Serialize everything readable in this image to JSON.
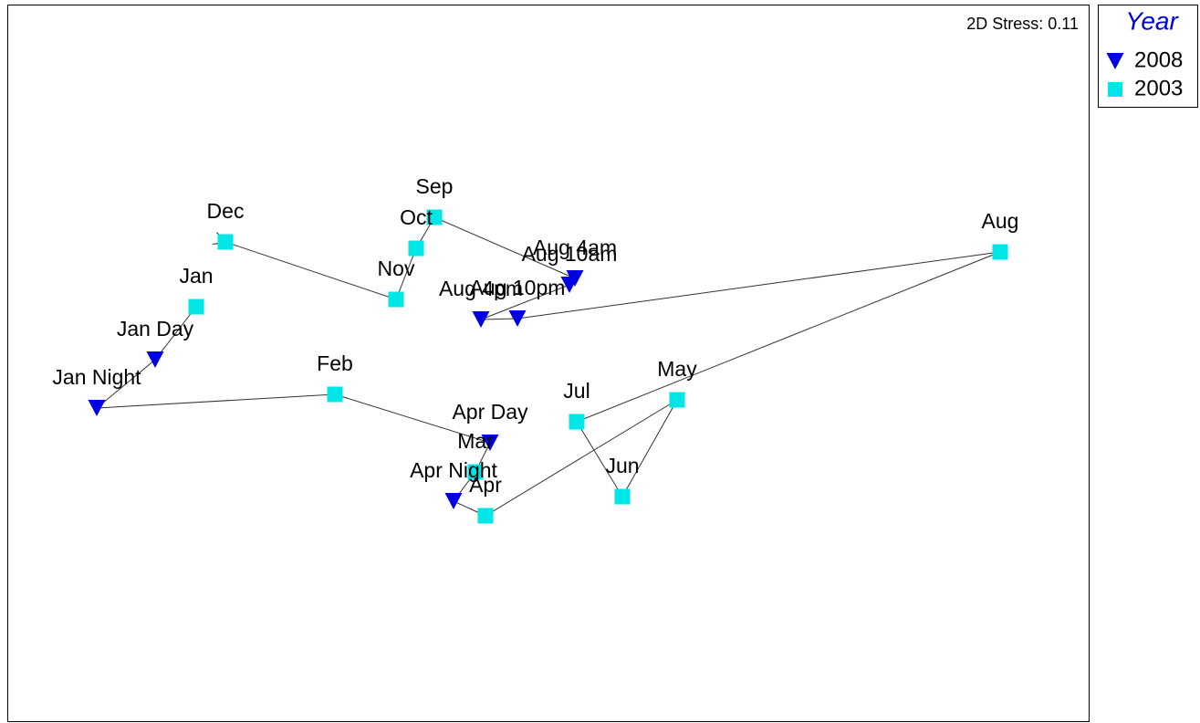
{
  "chart_data": {
    "type": "scatter",
    "annotation": "2D Stress: 0.11",
    "legend_title": "Year",
    "legend": "outside-top-right",
    "xlim": [
      0,
      11.85
    ],
    "ylim": [
      0,
      7.85
    ],
    "series": [
      {
        "name": "2008",
        "color": "#0000e0",
        "marker": "triangle-down"
      },
      {
        "name": "2003",
        "color": "#00e5e5",
        "marker": "square"
      }
    ],
    "trajectory": true,
    "points": [
      {
        "label": "Jan",
        "group": "2003",
        "x": 2.07,
        "y": 4.54
      },
      {
        "label": "Jan Day",
        "group": "2008",
        "x": 1.62,
        "y": 3.96
      },
      {
        "label": "Jan Night",
        "group": "2008",
        "x": 0.98,
        "y": 3.43
      },
      {
        "label": "Feb",
        "group": "2003",
        "x": 3.59,
        "y": 3.58
      },
      {
        "label": "Apr Day",
        "group": "2008",
        "x": 5.29,
        "y": 3.05
      },
      {
        "label": "Mar",
        "group": "2003",
        "x": 5.13,
        "y": 2.73
      },
      {
        "label": "Apr Night",
        "group": "2008",
        "x": 4.89,
        "y": 2.41
      },
      {
        "label": "Apr",
        "group": "2003",
        "x": 5.24,
        "y": 2.25
      },
      {
        "label": "May",
        "group": "2003",
        "x": 7.34,
        "y": 3.52
      },
      {
        "label": "Jun",
        "group": "2003",
        "x": 6.74,
        "y": 2.46
      },
      {
        "label": "Jul",
        "group": "2003",
        "x": 6.24,
        "y": 3.28
      },
      {
        "label": "Aug",
        "group": "2003",
        "x": 10.88,
        "y": 5.14
      },
      {
        "label": "Aug 10pm",
        "group": "2008",
        "x": 5.59,
        "y": 4.41
      },
      {
        "label": "Aug 4pm",
        "group": "2008",
        "x": 5.19,
        "y": 4.4
      },
      {
        "label": "Aug 10am",
        "group": "2008",
        "x": 6.16,
        "y": 4.78
      },
      {
        "label": "Aug 4am",
        "group": "2008",
        "x": 6.22,
        "y": 4.85
      },
      {
        "label": "Sep",
        "group": "2003",
        "x": 4.68,
        "y": 5.52
      },
      {
        "label": "Oct",
        "group": "2003",
        "x": 4.48,
        "y": 5.18
      },
      {
        "label": "Nov",
        "group": "2003",
        "x": 4.26,
        "y": 4.62
      },
      {
        "label": "Dec",
        "group": "2003",
        "x": 2.39,
        "y": 5.25
      }
    ]
  }
}
